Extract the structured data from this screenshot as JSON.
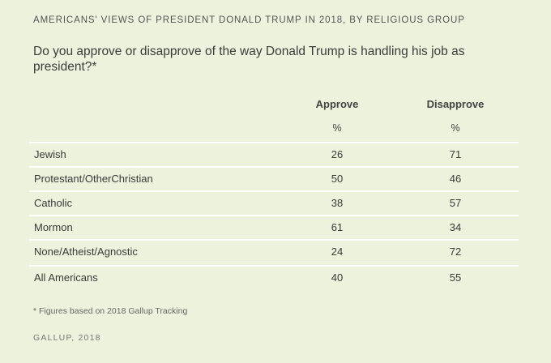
{
  "chart_data": {
    "type": "table",
    "title": "AMERICANS' VIEWS OF PRESIDENT DONALD TRUMP IN 2018, BY RELIGIOUS GROUP",
    "subtitle": "Do you approve or disapprove of the way Donald Trump is handling his job as president?*",
    "columns": [
      "Approve",
      "Disapprove"
    ],
    "units": [
      "%",
      "%"
    ],
    "rows": [
      {
        "label": "Jewish",
        "values": [
          26,
          71
        ]
      },
      {
        "label": "Protestant/OtherChristian",
        "values": [
          50,
          46
        ]
      },
      {
        "label": "Catholic",
        "values": [
          38,
          57
        ]
      },
      {
        "label": "Mormon",
        "values": [
          61,
          34
        ]
      },
      {
        "label": "None/Atheist/Agnostic",
        "values": [
          24,
          72
        ]
      },
      {
        "label": "All Americans",
        "values": [
          40,
          55
        ]
      }
    ],
    "footnote": "* Figures based on 2018 Gallup Tracking",
    "source": "GALLUP, 2018"
  },
  "colors": {
    "background": "#ecf2dc",
    "rule": "#ffffff",
    "text": "#3a3a3a"
  }
}
